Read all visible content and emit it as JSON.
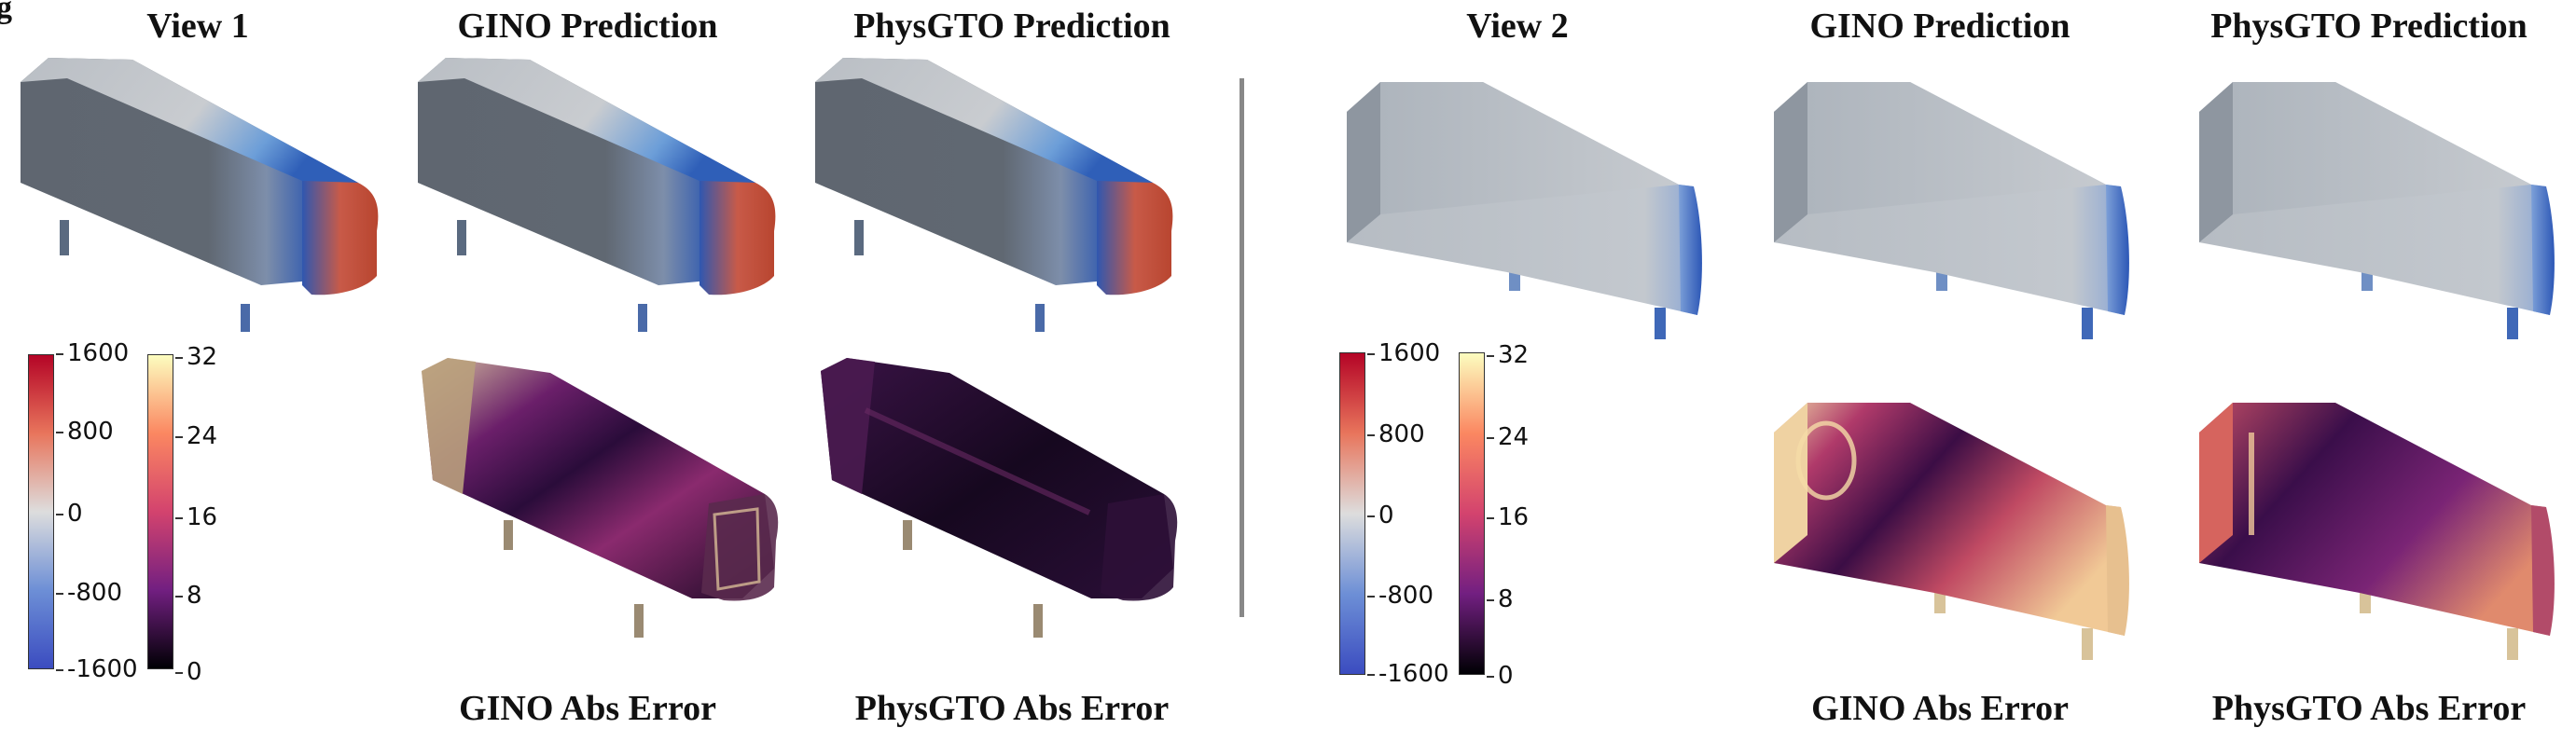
{
  "panel_letter": "g",
  "titles": {
    "view1": "View 1",
    "gino_pred_1": "GINO Prediction",
    "physgto_pred_1": "PhysGTO Prediction",
    "gino_err_1": "GINO Abs Error",
    "physgto_err_1": "PhysGTO Abs Error",
    "view2": "View 2",
    "gino_pred_2": "GINO Prediction",
    "physgto_pred_2": "PhysGTO Prediction",
    "gino_err_2": "GINO Abs Error",
    "physgto_err_2": "PhysGTO Abs Error"
  },
  "pressure_colorbar": {
    "ticks": [
      "1600",
      "800",
      "0",
      "-800",
      "-1600"
    ],
    "colors": [
      "#b40426",
      "#e8755c",
      "#dddddd",
      "#6d8fd6",
      "#3b4cc0"
    ]
  },
  "error_colorbar": {
    "ticks": [
      "32",
      "24",
      "16",
      "8",
      "0"
    ],
    "colors": [
      "#fcfdbf",
      "#fb8761",
      "#d3436e",
      "#721f81",
      "#000004"
    ]
  }
}
